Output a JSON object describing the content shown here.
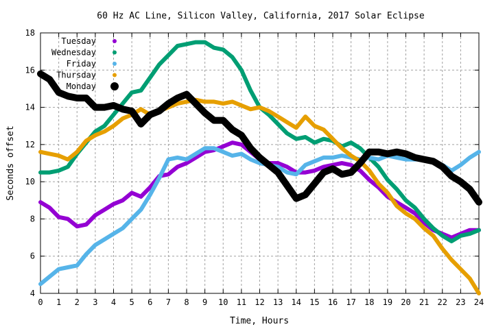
{
  "chart_data": {
    "type": "line",
    "title": "60 Hz AC Line, Silicon Valley, California, 2017 Solar Eclipse",
    "xlabel": "Time, Hours",
    "ylabel": "Seconds offset",
    "xlim": [
      0,
      24
    ],
    "ylim": [
      4,
      18
    ],
    "xticks": [
      "0",
      "1",
      "2",
      "3",
      "4",
      "5",
      "6",
      "7",
      "8",
      "9",
      "10",
      "11",
      "12",
      "13",
      "14",
      "15",
      "16",
      "17",
      "18",
      "19",
      "20",
      "21",
      "22",
      "23",
      "24"
    ],
    "yticks": [
      "4",
      "6",
      "8",
      "10",
      "12",
      "14",
      "16",
      "18"
    ],
    "grid": true,
    "legend_position": "top-left",
    "series": [
      {
        "name": "Tuesday",
        "color": "#9400d3",
        "x": [
          0,
          0.5,
          1,
          1.5,
          2,
          2.5,
          3,
          3.5,
          4,
          4.5,
          5,
          5.5,
          6,
          6.5,
          7,
          7.5,
          8,
          8.5,
          9,
          9.5,
          10,
          10.5,
          11,
          11.5,
          12,
          12.5,
          13,
          13.5,
          14,
          14.5,
          15,
          15.5,
          16,
          16.5,
          17,
          17.5,
          18,
          18.5,
          19,
          19.5,
          20,
          20.5,
          21,
          21.5,
          22,
          22.5,
          23,
          23.5,
          24
        ],
        "values": [
          8.9,
          8.6,
          8.1,
          8.0,
          7.6,
          7.7,
          8.2,
          8.5,
          8.8,
          9.0,
          9.4,
          9.2,
          9.7,
          10.3,
          10.4,
          10.8,
          11.0,
          11.3,
          11.6,
          11.7,
          11.9,
          12.1,
          12.0,
          11.6,
          11.2,
          11.0,
          11.0,
          10.8,
          10.5,
          10.5,
          10.6,
          10.8,
          10.9,
          11.0,
          10.9,
          10.6,
          10.1,
          9.7,
          9.2,
          8.9,
          8.6,
          8.3,
          7.8,
          7.4,
          7.2,
          7.0,
          7.2,
          7.4,
          7.4
        ]
      },
      {
        "name": "Wednesday",
        "color": "#009e73",
        "x": [
          0,
          0.5,
          1,
          1.5,
          2,
          2.5,
          3,
          3.5,
          4,
          4.5,
          5,
          5.5,
          6,
          6.5,
          7,
          7.5,
          8,
          8.5,
          9,
          9.5,
          10,
          10.5,
          11,
          11.5,
          12,
          12.5,
          13,
          13.5,
          14,
          14.5,
          15,
          15.5,
          16,
          16.5,
          17,
          17.5,
          18,
          18.5,
          19,
          19.5,
          20,
          20.5,
          21,
          21.5,
          22,
          22.5,
          23,
          23.5,
          24
        ],
        "values": [
          10.5,
          10.5,
          10.6,
          10.8,
          11.5,
          12.1,
          12.7,
          13.0,
          13.6,
          14.2,
          14.8,
          14.9,
          15.6,
          16.3,
          16.8,
          17.3,
          17.4,
          17.5,
          17.5,
          17.2,
          17.1,
          16.7,
          16.0,
          14.9,
          14.0,
          13.6,
          13.1,
          12.6,
          12.3,
          12.4,
          12.1,
          12.3,
          12.2,
          11.9,
          12.1,
          11.8,
          11.3,
          10.8,
          10.1,
          9.6,
          9.0,
          8.6,
          8.0,
          7.5,
          7.1,
          6.8,
          7.1,
          7.2,
          7.4
        ]
      },
      {
        "name": "Friday",
        "color": "#56b4e9",
        "x": [
          0,
          0.5,
          1,
          1.5,
          2,
          2.5,
          3,
          3.5,
          4,
          4.5,
          5,
          5.5,
          6,
          6.5,
          7,
          7.5,
          8,
          8.5,
          9,
          9.5,
          10,
          10.5,
          11,
          11.5,
          12,
          12.5,
          13,
          13.5,
          14,
          14.5,
          15,
          15.5,
          16,
          16.5,
          17,
          17.5,
          18,
          18.5,
          19,
          19.5,
          20,
          20.5,
          21,
          21.5,
          22,
          22.5,
          23,
          23.5,
          24
        ],
        "values": [
          4.5,
          4.9,
          5.3,
          5.4,
          5.5,
          6.1,
          6.6,
          6.9,
          7.2,
          7.5,
          8.0,
          8.5,
          9.3,
          10.2,
          11.2,
          11.3,
          11.2,
          11.5,
          11.8,
          11.8,
          11.6,
          11.4,
          11.5,
          11.2,
          11.0,
          10.9,
          10.8,
          10.5,
          10.4,
          10.9,
          11.1,
          11.3,
          11.3,
          11.4,
          11.3,
          11.2,
          11.3,
          11.2,
          11.4,
          11.3,
          11.2,
          11.2,
          11.2,
          11.1,
          10.9,
          10.6,
          10.9,
          11.3,
          11.6
        ]
      },
      {
        "name": "Thursday",
        "color": "#e69f00",
        "x": [
          0,
          0.5,
          1,
          1.5,
          2,
          2.5,
          3,
          3.5,
          4,
          4.5,
          5,
          5.5,
          6,
          6.5,
          7,
          7.5,
          8,
          8.5,
          9,
          9.5,
          10,
          10.5,
          11,
          11.5,
          12,
          12.5,
          13,
          13.5,
          14,
          14.5,
          15,
          15.5,
          16,
          16.5,
          17,
          17.5,
          18,
          18.5,
          19,
          19.5,
          20,
          20.5,
          21,
          21.5,
          22,
          22.5,
          23,
          23.5,
          24
        ],
        "values": [
          11.6,
          11.5,
          11.4,
          11.2,
          11.6,
          12.2,
          12.5,
          12.7,
          13.0,
          13.4,
          13.6,
          13.9,
          13.6,
          13.8,
          14.0,
          14.2,
          14.3,
          14.4,
          14.3,
          14.3,
          14.2,
          14.3,
          14.1,
          13.9,
          14.0,
          13.8,
          13.5,
          13.2,
          12.9,
          13.5,
          13.0,
          12.8,
          12.3,
          11.8,
          11.4,
          11.1,
          10.6,
          9.9,
          9.4,
          8.7,
          8.3,
          8.0,
          7.5,
          7.1,
          6.4,
          5.8,
          5.3,
          4.8,
          4.0
        ]
      },
      {
        "name": "Monday",
        "color": "#000000",
        "x": [
          0,
          0.5,
          1,
          1.5,
          2,
          2.5,
          3,
          3.5,
          4,
          4.5,
          5,
          5.5,
          6,
          6.5,
          7,
          7.5,
          8,
          8.5,
          9,
          9.5,
          10,
          10.5,
          11,
          11.5,
          12,
          12.5,
          13,
          13.5,
          14,
          14.5,
          15,
          15.5,
          16,
          16.5,
          17,
          17.5,
          18,
          18.5,
          19,
          19.5,
          20,
          20.5,
          21,
          21.5,
          22,
          22.5,
          23,
          23.5,
          24
        ],
        "values": [
          15.8,
          15.5,
          14.8,
          14.6,
          14.5,
          14.5,
          14.0,
          14.0,
          14.1,
          13.9,
          13.8,
          13.1,
          13.6,
          13.8,
          14.2,
          14.5,
          14.7,
          14.2,
          13.7,
          13.3,
          13.3,
          12.8,
          12.5,
          11.8,
          11.3,
          10.9,
          10.5,
          9.8,
          9.1,
          9.3,
          9.9,
          10.5,
          10.7,
          10.4,
          10.5,
          11.0,
          11.6,
          11.6,
          11.5,
          11.6,
          11.5,
          11.3,
          11.2,
          11.1,
          10.8,
          10.3,
          10.0,
          9.6,
          8.9
        ]
      }
    ]
  }
}
